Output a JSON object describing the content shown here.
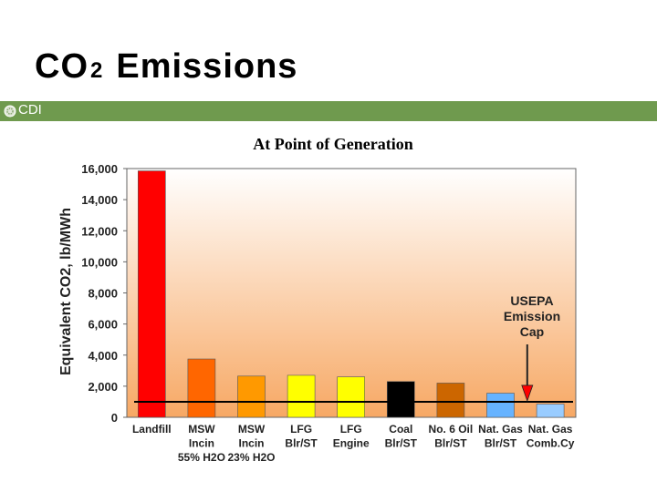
{
  "slide": {
    "title_main": "CO",
    "title_sub": "2",
    "title_rest": "Emissions",
    "banner_label": "CDI",
    "banner_color": "#6f9a4e"
  },
  "chart_data": {
    "type": "bar",
    "title": "At Point of Generation",
    "xlabel": "",
    "ylabel": "Equivalent CO2, lb/MWh",
    "ylim": [
      0,
      16000
    ],
    "yticks": [
      0,
      2000,
      4000,
      6000,
      8000,
      10000,
      12000,
      14000,
      16000
    ],
    "ytick_labels": [
      "0",
      "2,000",
      "4,000",
      "6,000",
      "8,000",
      "10,000",
      "12,000",
      "14,000",
      "16,000"
    ],
    "categories": [
      [
        "Landfill"
      ],
      [
        "MSW",
        "Incin",
        "55% H2O"
      ],
      [
        "MSW",
        "Incin",
        "23% H2O"
      ],
      [
        "LFG",
        "Blr/ST"
      ],
      [
        "LFG",
        "Engine"
      ],
      [
        "Coal",
        "Blr/ST"
      ],
      [
        "No. 6 Oil",
        "Blr/ST"
      ],
      [
        "Nat. Gas",
        "Blr/ST"
      ],
      [
        "Nat. Gas",
        "Comb.Cy"
      ]
    ],
    "values": [
      15850,
      3750,
      2650,
      2700,
      2600,
      2300,
      2200,
      1550,
      850
    ],
    "colors": [
      "#ff0000",
      "#ff6600",
      "#ff9900",
      "#ffff00",
      "#ffff00",
      "#000000",
      "#cc6600",
      "#66b3ff",
      "#99ccff"
    ],
    "reference_line": {
      "value": 1000,
      "label": "USEPA Emission Cap"
    },
    "annotation": [
      "USEPA",
      "Emission",
      "Cap"
    ]
  }
}
